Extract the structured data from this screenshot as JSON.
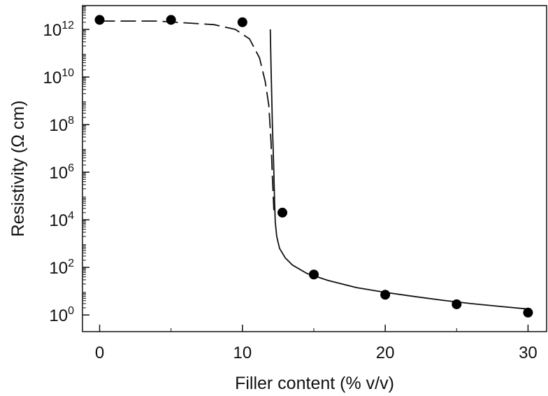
{
  "chart_data": {
    "type": "scatter",
    "title": "",
    "xlabel": "Filler content (% v/v)",
    "ylabel": "Resistivity (Ω cm)",
    "x_ticks": [
      0,
      10,
      20,
      30
    ],
    "y_ticks": [
      {
        "base": "10",
        "exp": "0",
        "log": 0
      },
      {
        "base": "10",
        "exp": "2",
        "log": 2
      },
      {
        "base": "10",
        "exp": "4",
        "log": 4
      },
      {
        "base": "10",
        "exp": "6",
        "log": 6
      },
      {
        "base": "10",
        "exp": "8",
        "log": 8
      },
      {
        "base": "10",
        "exp": "10",
        "log": 10
      },
      {
        "base": "10",
        "exp": "12",
        "log": 12
      }
    ],
    "xlim": [
      -1.2,
      31.3
    ],
    "ylim_log10": [
      -0.7,
      13.0
    ],
    "y_scale": "log",
    "grid": false,
    "series": [
      {
        "marker": "filled-circle",
        "x": [
          0,
          5,
          10,
          12.8,
          15,
          20,
          25,
          30
        ],
        "log10_y": [
          12.4,
          12.4,
          12.3,
          4.3,
          1.7,
          0.85,
          0.45,
          0.1
        ]
      },
      {
        "style": "dashed",
        "x": [
          0,
          4,
          8,
          9.5,
          10.5,
          11.2,
          11.6,
          11.85,
          12.0,
          12.1,
          12.2
        ],
        "log10_y": [
          12.35,
          12.35,
          12.2,
          12.0,
          11.6,
          10.8,
          9.8,
          8.8,
          7.3,
          5.8,
          4.4
        ]
      },
      {
        "style": "solid",
        "x": [
          11.95,
          12.0,
          12.1,
          12.2,
          12.25,
          12.3,
          12.4,
          12.6,
          13.0,
          13.5,
          14.5,
          16,
          18,
          20,
          22,
          24,
          26,
          28,
          30
        ],
        "log10_y": [
          12.0,
          10.5,
          8.0,
          6.0,
          4.8,
          3.9,
          3.3,
          2.8,
          2.4,
          2.1,
          1.75,
          1.45,
          1.15,
          0.95,
          0.78,
          0.62,
          0.48,
          0.36,
          0.25
        ]
      }
    ]
  }
}
